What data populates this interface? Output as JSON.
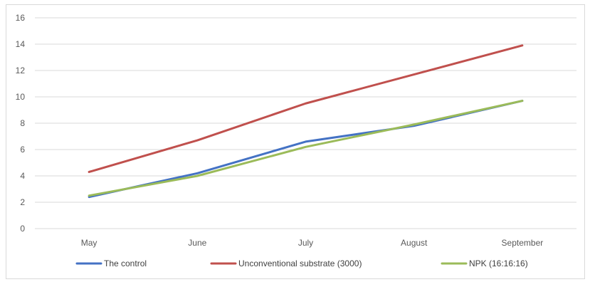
{
  "chart_data": {
    "type": "line",
    "title": "",
    "xlabel": "",
    "ylabel": "",
    "categories": [
      "May",
      "June",
      "July",
      "August",
      "September"
    ],
    "ylim": [
      0,
      16
    ],
    "yticks": [
      0,
      2,
      4,
      6,
      8,
      10,
      12,
      14,
      16
    ],
    "grid": true,
    "legend_position": "bottom",
    "series": [
      {
        "name": "The control",
        "color": "#4472c4",
        "values": [
          2.4,
          4.2,
          6.6,
          7.8,
          9.7
        ]
      },
      {
        "name": "Unconventional substrate (3000)",
        "color": "#c0504d",
        "values": [
          4.3,
          6.7,
          9.5,
          11.7,
          13.9
        ]
      },
      {
        "name": "NPK (16:16:16)",
        "color": "#9bbb59",
        "values": [
          2.5,
          4.0,
          6.2,
          7.9,
          9.7
        ]
      }
    ]
  }
}
